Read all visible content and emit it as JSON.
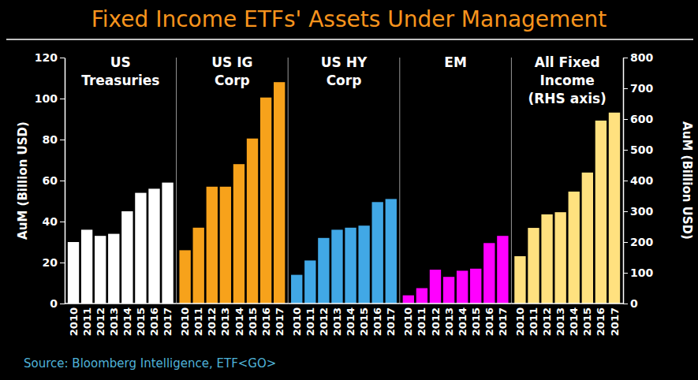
{
  "chart_data": {
    "type": "bar",
    "title": "Fixed Income ETFs' Assets Under Management",
    "source": "Source: Bloomberg Intelligence, ETF<GO>",
    "ylabel": "AuM (Billion USD)",
    "y2label": "AuM (Billion USD)",
    "categories": [
      "2010",
      "2011",
      "2012",
      "2013",
      "2014",
      "2015",
      "2016",
      "2017"
    ],
    "series": [
      {
        "name": "US\nTreasuries",
        "color": "#ffffff",
        "values": [
          30,
          36,
          33,
          34,
          45,
          54,
          56,
          59
        ]
      },
      {
        "name": "US IG\nCorp",
        "color": "#f7a21b",
        "values": [
          26,
          37,
          57,
          57,
          68,
          80.5,
          100.5,
          108
        ]
      },
      {
        "name": "US HY\nCorp",
        "color": "#41a8e6",
        "values": [
          14,
          21,
          32,
          36,
          37,
          38,
          49.5,
          51
        ]
      },
      {
        "name": "EM",
        "color": "#ff00ff",
        "values": [
          4,
          7.5,
          16.5,
          13,
          16,
          17,
          29.5,
          33
        ]
      },
      {
        "name": "All Fixed\nIncome\n(RHS axis)",
        "color": "#ffe17f",
        "axis": "y2",
        "values": [
          154,
          246,
          290,
          297,
          364,
          426,
          595,
          621
        ]
      }
    ],
    "ylim": [
      0,
      120
    ],
    "yticks": [
      0,
      20,
      40,
      60,
      80,
      100,
      120
    ],
    "y2lim": [
      0,
      800
    ],
    "y2ticks": [
      0,
      100,
      200,
      300,
      400,
      500,
      600,
      700,
      800
    ]
  }
}
